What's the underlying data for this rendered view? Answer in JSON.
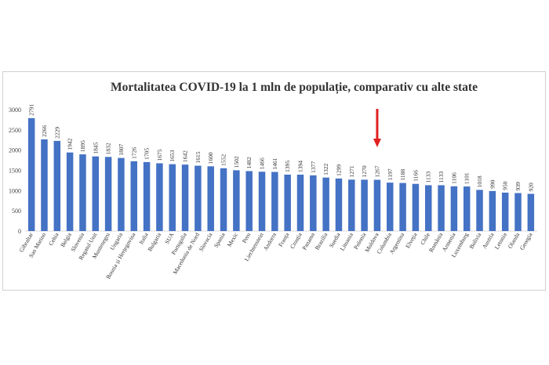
{
  "chart_data": {
    "type": "bar",
    "title": "Mortalitatea COVID-19 la 1 mln de populație, comparativ cu alte state",
    "xlabel": "",
    "ylabel": "",
    "ylim": [
      0,
      3000
    ],
    "yticks": [
      0,
      500,
      1000,
      1500,
      2000,
      2500,
      3000
    ],
    "grid": false,
    "legend": "none",
    "bar_color": "#4472C4",
    "annotation_color": "#e02020",
    "annotation": "arrow above Moldova",
    "categories": [
      "Gibraltar",
      "San Marino",
      "Cehia",
      "Belgia",
      "Slovenia",
      "Regatul Unit",
      "Muntenegru",
      "Ungaria",
      "Bosnia și Herțegovina",
      "Italia",
      "Bulgaria",
      "SUA",
      "Portugalia",
      "Macedonia de Nord",
      "Slovacia",
      "Spania",
      "Mexic",
      "Peru",
      "Liechtenstein",
      "Andorra",
      "Franța",
      "Croația",
      "Panama",
      "Brazilia",
      "Suedia",
      "Lituania",
      "Polonia",
      "Moldova",
      "Columbia",
      "Argentina",
      "Elveția",
      "Chile",
      "România",
      "Armenia",
      "Luxemburg",
      "Bolivia",
      "Austria",
      "Letonia",
      "Olanda",
      "Georgia"
    ],
    "values": [
      2791,
      2266,
      2229,
      1942,
      1895,
      1845,
      1832,
      1807,
      1726,
      1705,
      1675,
      1653,
      1642,
      1615,
      1600,
      1552,
      1502,
      1482,
      1466,
      1461,
      1395,
      1394,
      1377,
      1322,
      1299,
      1271,
      1270,
      1267,
      1197,
      1188,
      1166,
      1133,
      1133,
      1106,
      1101,
      1018,
      990,
      950,
      939,
      920
    ],
    "data_labels": [
      "2791",
      "2266",
      "2229",
      "1942",
      "1895",
      "1845",
      "1832",
      "1807",
      "1726",
      "1705",
      "1675",
      "1653",
      "1642",
      "1615",
      "1600",
      "1552",
      "1502",
      "1482",
      "1466",
      "1461",
      "1395",
      "1394",
      "1377",
      "1322",
      "1299",
      "1271",
      "1270",
      "1267",
      "1197",
      "1188",
      "1166",
      "1133",
      "1133",
      "1106",
      "1101",
      "1018",
      "990",
      "950",
      "939",
      "920"
    ],
    "ytick_labels": [
      "0",
      "500",
      "1000",
      "1500",
      "2000",
      "2500",
      "3000"
    ]
  }
}
